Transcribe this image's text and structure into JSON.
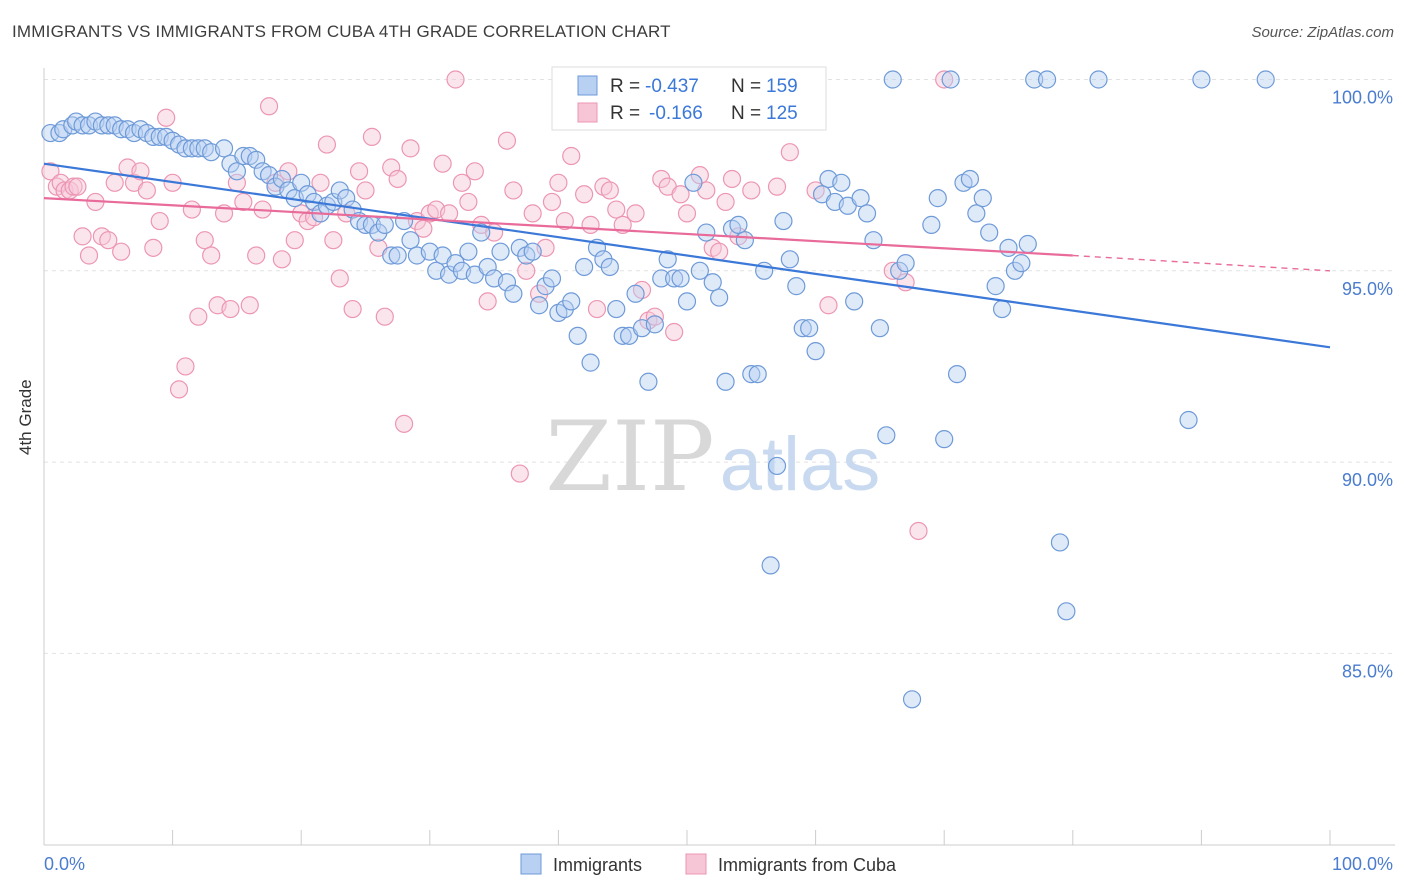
{
  "header": {
    "title": "IMMIGRANTS VS IMMIGRANTS FROM CUBA 4TH GRADE CORRELATION CHART",
    "source": "Source: ZipAtlas.com"
  },
  "watermark": {
    "zip": "ZIP",
    "atlas": "atlas"
  },
  "chart_data": {
    "type": "scatter",
    "xlabel": "",
    "ylabel": "4th Grade",
    "xlim": [
      0,
      100
    ],
    "ylim": [
      80.5,
      100.7
    ],
    "x_tick_labels": {
      "left": "0.0%",
      "right": "100.0%"
    },
    "y_ticks": [
      100,
      95,
      90,
      85
    ],
    "y_tick_labels": [
      "100.0%",
      "95.0%",
      "90.0%",
      "85.0%"
    ],
    "grid": true,
    "legend_position": "top-center",
    "colors": {
      "blue": "#5b8fd6",
      "pink": "#ef8fb0",
      "blue_line": "#3b78d8",
      "pink_line": "#e86b9a",
      "tick_label": "#4a7ccf"
    },
    "stats": [
      {
        "r_label": "R =",
        "r_value": "-0.437",
        "n_label": "N =",
        "n_value": "159"
      },
      {
        "r_label": "R =",
        "r_value": "-0.166",
        "n_label": "N =",
        "n_value": "125"
      }
    ],
    "series": [
      {
        "name": "Immigrants",
        "color": "#5b8fd6",
        "trend": {
          "x": [
            0,
            100
          ],
          "y": [
            97.8,
            93.0
          ]
        },
        "points": [
          [
            0.5,
            98.6
          ],
          [
            1.2,
            98.6
          ],
          [
            1.5,
            98.7
          ],
          [
            2.2,
            98.8
          ],
          [
            2.5,
            98.9
          ],
          [
            3,
            98.8
          ],
          [
            3.5,
            98.8
          ],
          [
            4,
            98.9
          ],
          [
            4.5,
            98.8
          ],
          [
            5,
            98.8
          ],
          [
            5.5,
            98.8
          ],
          [
            6,
            98.7
          ],
          [
            6.5,
            98.7
          ],
          [
            7,
            98.6
          ],
          [
            7.5,
            98.7
          ],
          [
            8,
            98.6
          ],
          [
            8.5,
            98.5
          ],
          [
            9,
            98.5
          ],
          [
            9.5,
            98.5
          ],
          [
            10,
            98.4
          ],
          [
            10.5,
            98.3
          ],
          [
            11,
            98.2
          ],
          [
            11.5,
            98.2
          ],
          [
            12,
            98.2
          ],
          [
            12.5,
            98.2
          ],
          [
            13,
            98.1
          ],
          [
            14,
            98.2
          ],
          [
            14.5,
            97.8
          ],
          [
            15,
            97.6
          ],
          [
            15.5,
            98.0
          ],
          [
            16,
            98.0
          ],
          [
            16.5,
            97.9
          ],
          [
            17,
            97.6
          ],
          [
            17.5,
            97.5
          ],
          [
            18,
            97.2
          ],
          [
            18.5,
            97.4
          ],
          [
            19,
            97.1
          ],
          [
            19.5,
            96.9
          ],
          [
            20,
            97.3
          ],
          [
            20.5,
            97.0
          ],
          [
            21,
            96.8
          ],
          [
            21.5,
            96.5
          ],
          [
            22,
            96.7
          ],
          [
            22.5,
            96.8
          ],
          [
            23,
            97.1
          ],
          [
            23.5,
            96.9
          ],
          [
            24,
            96.6
          ],
          [
            24.5,
            96.3
          ],
          [
            25,
            96.2
          ],
          [
            25.5,
            96.2
          ],
          [
            26,
            96.0
          ],
          [
            26.5,
            96.2
          ],
          [
            27,
            95.4
          ],
          [
            27.5,
            95.4
          ],
          [
            28,
            96.3
          ],
          [
            28.5,
            95.8
          ],
          [
            29,
            95.4
          ],
          [
            30,
            95.5
          ],
          [
            30.5,
            95.0
          ],
          [
            31,
            95.4
          ],
          [
            31.5,
            94.9
          ],
          [
            32,
            95.2
          ],
          [
            32.5,
            95.0
          ],
          [
            33,
            95.5
          ],
          [
            33.5,
            94.9
          ],
          [
            34,
            96.0
          ],
          [
            34.5,
            95.1
          ],
          [
            35,
            94.8
          ],
          [
            35.5,
            95.5
          ],
          [
            36,
            94.7
          ],
          [
            36.5,
            94.4
          ],
          [
            37,
            95.6
          ],
          [
            37.5,
            95.4
          ],
          [
            38,
            95.5
          ],
          [
            38.5,
            94.1
          ],
          [
            39,
            94.6
          ],
          [
            39.5,
            94.8
          ],
          [
            40,
            93.9
          ],
          [
            40.5,
            94.0
          ],
          [
            41,
            94.2
          ],
          [
            41.5,
            93.3
          ],
          [
            42,
            95.1
          ],
          [
            42.5,
            92.6
          ],
          [
            43,
            95.6
          ],
          [
            43.5,
            95.3
          ],
          [
            44,
            95.1
          ],
          [
            44.5,
            94.0
          ],
          [
            45,
            93.3
          ],
          [
            45.5,
            93.3
          ],
          [
            46,
            94.4
          ],
          [
            46.5,
            93.5
          ],
          [
            47,
            92.1
          ],
          [
            47.5,
            93.6
          ],
          [
            48,
            94.8
          ],
          [
            48.5,
            95.3
          ],
          [
            49,
            94.8
          ],
          [
            49.5,
            94.8
          ],
          [
            50,
            94.2
          ],
          [
            50.5,
            97.3
          ],
          [
            51,
            95.0
          ],
          [
            51.5,
            96.0
          ],
          [
            52,
            94.7
          ],
          [
            52.5,
            94.3
          ],
          [
            53,
            92.1
          ],
          [
            53.5,
            96.1
          ],
          [
            54,
            96.2
          ],
          [
            54.5,
            95.8
          ],
          [
            55,
            92.3
          ],
          [
            55.5,
            92.3
          ],
          [
            56,
            95.0
          ],
          [
            56.5,
            87.3
          ],
          [
            57,
            89.9
          ],
          [
            57.5,
            96.3
          ],
          [
            58,
            95.3
          ],
          [
            58.5,
            94.6
          ],
          [
            59,
            93.5
          ],
          [
            59.5,
            93.5
          ],
          [
            60,
            92.9
          ],
          [
            60.5,
            97.0
          ],
          [
            61,
            97.4
          ],
          [
            61.5,
            96.8
          ],
          [
            62,
            97.3
          ],
          [
            62.5,
            96.7
          ],
          [
            63,
            94.2
          ],
          [
            63.5,
            96.9
          ],
          [
            64,
            96.5
          ],
          [
            64.5,
            95.8
          ],
          [
            65,
            93.5
          ],
          [
            65.5,
            90.7
          ],
          [
            66,
            100.0
          ],
          [
            66.5,
            95.0
          ],
          [
            67,
            95.2
          ],
          [
            67.5,
            83.8
          ],
          [
            69,
            96.2
          ],
          [
            69.5,
            96.9
          ],
          [
            70,
            90.6
          ],
          [
            70.5,
            100.0
          ],
          [
            71,
            92.3
          ],
          [
            71.5,
            97.3
          ],
          [
            72,
            97.4
          ],
          [
            72.5,
            96.5
          ],
          [
            73,
            96.9
          ],
          [
            73.5,
            96.0
          ],
          [
            74,
            94.6
          ],
          [
            74.5,
            94.0
          ],
          [
            75,
            95.6
          ],
          [
            75.5,
            95.0
          ],
          [
            76,
            95.2
          ],
          [
            76.5,
            95.7
          ],
          [
            77,
            100.0
          ],
          [
            78,
            100.0
          ],
          [
            79,
            87.9
          ],
          [
            79.5,
            86.1
          ],
          [
            82,
            100.0
          ],
          [
            89,
            91.1
          ],
          [
            90,
            100.0
          ],
          [
            95,
            100.0
          ]
        ]
      },
      {
        "name": "Immigrants from Cuba",
        "color": "#ef8fb0",
        "trend": {
          "x": [
            0,
            80
          ],
          "y": [
            96.9,
            95.4
          ]
        },
        "trend_dash": {
          "x": [
            80,
            100
          ],
          "y": [
            95.4,
            95.0
          ]
        },
        "points": [
          [
            0.5,
            97.6
          ],
          [
            1,
            97.2
          ],
          [
            1.3,
            97.3
          ],
          [
            1.6,
            97.1
          ],
          [
            2,
            97.1
          ],
          [
            2.3,
            97.2
          ],
          [
            2.6,
            97.2
          ],
          [
            3,
            95.9
          ],
          [
            3.5,
            95.4
          ],
          [
            4,
            96.8
          ],
          [
            4.5,
            95.9
          ],
          [
            5,
            95.8
          ],
          [
            5.5,
            97.3
          ],
          [
            6,
            95.5
          ],
          [
            6.5,
            97.7
          ],
          [
            7,
            97.3
          ],
          [
            7.5,
            97.6
          ],
          [
            8,
            97.1
          ],
          [
            8.5,
            95.6
          ],
          [
            9,
            96.3
          ],
          [
            9.5,
            99.0
          ],
          [
            10,
            97.3
          ],
          [
            10.5,
            91.9
          ],
          [
            11,
            92.5
          ],
          [
            11.5,
            96.6
          ],
          [
            12,
            93.8
          ],
          [
            12.5,
            95.8
          ],
          [
            13,
            95.4
          ],
          [
            13.5,
            94.1
          ],
          [
            14,
            96.5
          ],
          [
            14.5,
            94.0
          ],
          [
            15,
            97.3
          ],
          [
            15.5,
            96.8
          ],
          [
            16,
            94.1
          ],
          [
            16.5,
            95.4
          ],
          [
            17,
            96.6
          ],
          [
            17.5,
            99.3
          ],
          [
            18,
            97.3
          ],
          [
            18.5,
            95.3
          ],
          [
            19,
            97.6
          ],
          [
            19.5,
            95.8
          ],
          [
            20,
            96.5
          ],
          [
            20.5,
            96.3
          ],
          [
            21,
            96.4
          ],
          [
            21.5,
            97.3
          ],
          [
            22,
            98.3
          ],
          [
            22.5,
            95.8
          ],
          [
            23,
            94.8
          ],
          [
            23.5,
            96.5
          ],
          [
            24,
            94.0
          ],
          [
            24.5,
            97.6
          ],
          [
            25,
            97.1
          ],
          [
            25.5,
            98.5
          ],
          [
            26,
            95.6
          ],
          [
            26.5,
            93.8
          ],
          [
            27,
            97.7
          ],
          [
            27.5,
            97.4
          ],
          [
            28,
            91.0
          ],
          [
            28.5,
            98.2
          ],
          [
            29,
            96.3
          ],
          [
            29.5,
            96.1
          ],
          [
            30,
            96.5
          ],
          [
            30.5,
            96.6
          ],
          [
            31,
            97.8
          ],
          [
            31.5,
            96.5
          ],
          [
            32,
            100.0
          ],
          [
            32.5,
            97.3
          ],
          [
            33,
            96.8
          ],
          [
            33.5,
            97.6
          ],
          [
            34,
            96.2
          ],
          [
            34.5,
            94.2
          ],
          [
            35,
            96.0
          ],
          [
            36,
            98.4
          ],
          [
            36.5,
            97.1
          ],
          [
            37,
            89.7
          ],
          [
            37.5,
            95.0
          ],
          [
            38,
            96.5
          ],
          [
            38.5,
            94.4
          ],
          [
            39,
            95.6
          ],
          [
            39.5,
            96.8
          ],
          [
            40,
            97.3
          ],
          [
            40.5,
            96.3
          ],
          [
            41,
            98.0
          ],
          [
            42,
            97.0
          ],
          [
            42.5,
            96.2
          ],
          [
            43,
            94.0
          ],
          [
            43.5,
            97.2
          ],
          [
            44,
            97.1
          ],
          [
            44.5,
            96.6
          ],
          [
            45,
            96.2
          ],
          [
            46,
            96.5
          ],
          [
            46.5,
            94.5
          ],
          [
            47,
            93.7
          ],
          [
            47.5,
            93.8
          ],
          [
            48,
            97.4
          ],
          [
            48.5,
            97.2
          ],
          [
            49,
            93.4
          ],
          [
            49.5,
            97.0
          ],
          [
            50,
            96.5
          ],
          [
            51,
            97.5
          ],
          [
            51.5,
            97.1
          ],
          [
            52,
            95.6
          ],
          [
            52.5,
            95.5
          ],
          [
            53,
            96.8
          ],
          [
            53.5,
            97.4
          ],
          [
            54,
            95.9
          ],
          [
            55,
            97.1
          ],
          [
            57,
            97.2
          ],
          [
            58,
            98.1
          ],
          [
            60,
            97.1
          ],
          [
            61,
            94.1
          ],
          [
            66,
            95.0
          ],
          [
            67,
            94.7
          ],
          [
            68,
            88.2
          ],
          [
            70,
            100.0
          ]
        ]
      }
    ]
  }
}
